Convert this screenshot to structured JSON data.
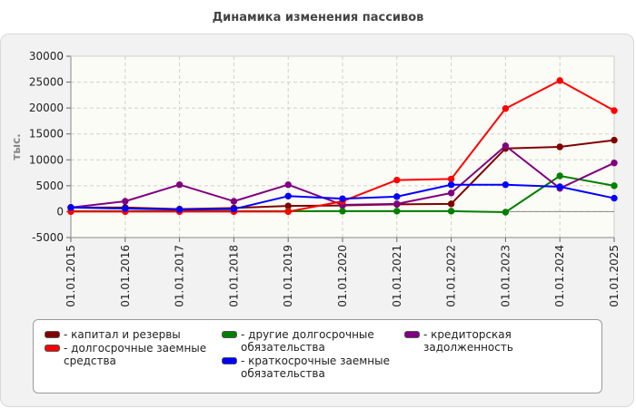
{
  "chart_data": {
    "type": "line",
    "title": "Динамика изменения пассивов",
    "ylabel": "тыс.",
    "xlabel": "",
    "categories": [
      "01.01.2015",
      "01.01.2016",
      "01.01.2017",
      "01.01.2018",
      "01.01.2019",
      "01.01.2020",
      "01.01.2021",
      "01.01.2022",
      "01.01.2023",
      "01.01.2024",
      "01.01.2025"
    ],
    "ylim": [
      -5000,
      30000
    ],
    "yticks": [
      -5000,
      0,
      5000,
      10000,
      15000,
      20000,
      25000,
      30000
    ],
    "grid": true,
    "legend_position": "bottom",
    "series": [
      {
        "name": "капитал и резервы",
        "color": "#800000",
        "values": [
          800,
          800,
          500,
          700,
          1100,
          1200,
          1400,
          1500,
          12200,
          12500,
          13800
        ]
      },
      {
        "name": "другие долгосрочные обязательства",
        "color": "#008000",
        "values": [
          100,
          100,
          100,
          100,
          100,
          100,
          100,
          100,
          -100,
          6900,
          5000
        ]
      },
      {
        "name": "кредиторская задолженность",
        "color": "#800080",
        "values": [
          800,
          2000,
          5200,
          2000,
          5200,
          1300,
          1500,
          3600,
          12700,
          4500,
          9400
        ]
      },
      {
        "name": "долгосрочные заемные средства",
        "color": "#ff0000",
        "values": [
          0,
          0,
          0,
          0,
          0,
          2000,
          6100,
          6300,
          19900,
          25300,
          19500
        ]
      },
      {
        "name": "краткосрочные заемные обязательства",
        "color": "#0000ff",
        "values": [
          800,
          600,
          400,
          500,
          3000,
          2500,
          2900,
          5200,
          5200,
          4800,
          2600
        ]
      }
    ]
  }
}
